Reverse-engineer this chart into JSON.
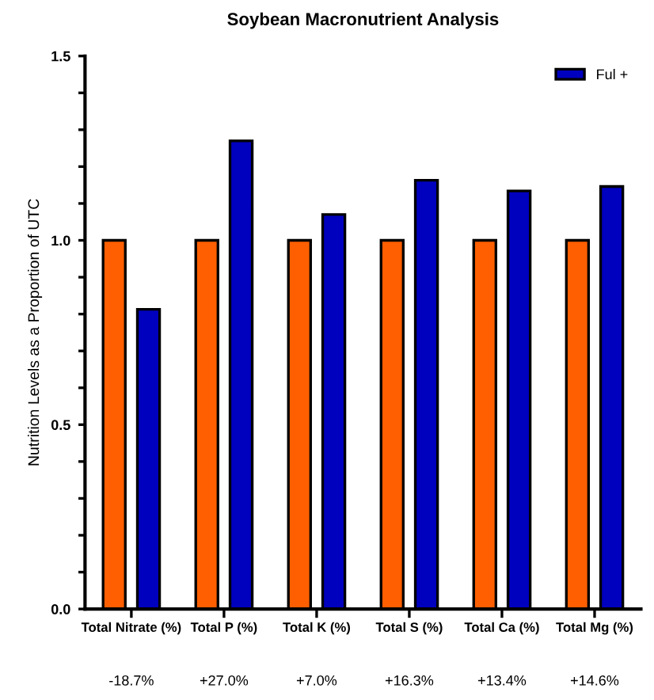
{
  "chart_data": {
    "type": "bar",
    "title": "Soybean Macronutrient Analysis",
    "ylabel": "Nutrition Levels as a Proportion of UTC",
    "categories": [
      "Total Nitrate (%)",
      "Total P (%)",
      "Total K (%)",
      "Total S (%)",
      "Total Ca (%)",
      "Total Mg (%)"
    ],
    "series": [
      {
        "color": "#ff5f00",
        "values": [
          1.0,
          1.0,
          1.0,
          1.0,
          1.0,
          1.0
        ]
      },
      {
        "name": "Ful +",
        "color": "#0000bf",
        "values": [
          0.813,
          1.27,
          1.07,
          1.163,
          1.134,
          1.146
        ]
      }
    ],
    "ylim": [
      0,
      1.5
    ],
    "yticks": [
      {
        "value": 0,
        "label": "0.0"
      },
      {
        "value": 0.1,
        "label": null
      },
      {
        "value": 0.2,
        "label": null
      },
      {
        "value": 0.3,
        "label": null
      },
      {
        "value": 0.4,
        "label": null
      },
      {
        "value": 0.5,
        "label": "0.5"
      },
      {
        "value": 0.6,
        "label": null
      },
      {
        "value": 0.7,
        "label": null
      },
      {
        "value": 0.8,
        "label": null
      },
      {
        "value": 0.9,
        "label": null
      },
      {
        "value": 1.0,
        "label": "1.0"
      },
      {
        "value": 1.1,
        "label": null
      },
      {
        "value": 1.2,
        "label": null
      },
      {
        "value": 1.3,
        "label": null
      },
      {
        "value": 1.4,
        "label": null
      },
      {
        "value": 1.5,
        "label": "1.5"
      }
    ],
    "annotations": [
      "-18.7%",
      "+27.0%",
      "+7.0%",
      "+16.3%",
      "+13.4%",
      "+14.6%"
    ],
    "grid": false,
    "legend": "top right"
  }
}
